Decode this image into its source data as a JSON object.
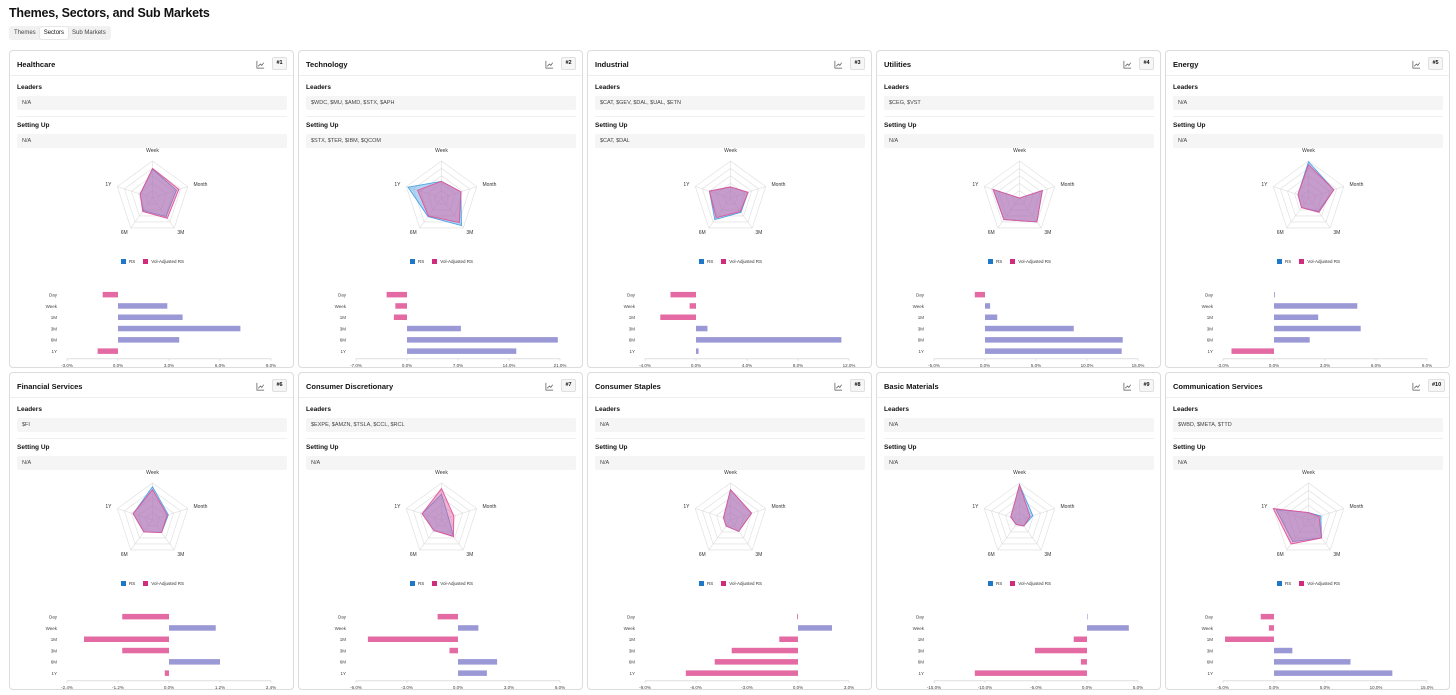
{
  "page": {
    "title": "Themes, Sectors, and Sub Markets"
  },
  "tabs": [
    {
      "label": "Themes",
      "active": false
    },
    {
      "label": "Sectors",
      "active": true
    },
    {
      "label": "Sub Markets",
      "active": false
    }
  ],
  "labels": {
    "leaders": "Leaders",
    "setting_up": "Setting Up"
  },
  "radar_axes": [
    "Week",
    "Month",
    "3M",
    "6M",
    "1Y"
  ],
  "bar_categories": [
    "Day",
    "Week",
    "1M",
    "3M",
    "6M",
    "1Y"
  ],
  "legend": {
    "rs": "RS",
    "vol_adjusted": "Vol-Adjusted RS"
  },
  "colors": {
    "rs": "#4fa3e6",
    "vol_adjusted": "#e0569a",
    "overlap": "#8a82c9",
    "bar_positive": "#9b98d6",
    "bar_negative": "#e36aa3",
    "rs_legend": "#1f77c8",
    "vol_legend": "#d12c7c"
  },
  "icons": {
    "chart_toggle": "line-chart-icon"
  },
  "sectors": [
    {
      "name": "Healthcare",
      "rank": "#1",
      "leaders": "N/A",
      "setting_up": "N/A",
      "radar": {
        "rs": [
          0.78,
          0.68,
          0.62,
          0.42,
          0.35
        ],
        "vol": [
          0.8,
          0.75,
          0.68,
          0.45,
          0.35
        ]
      },
      "bars": {
        "values": [
          -0.9,
          2.9,
          3.8,
          7.2,
          3.6,
          -1.2
        ],
        "ticks": [
          "-3.0%",
          "0.0%",
          "3.0%",
          "6.0%",
          "9.0%"
        ],
        "domain": [
          -3,
          9
        ]
      }
    },
    {
      "name": "Technology",
      "rank": "#2",
      "leaders": "$WDC, $MU, $AMD, $STX, $APH",
      "setting_up": "$STX, $TER, $IBM, $QCOM",
      "radar": {
        "rs": [
          0.45,
          0.55,
          0.92,
          0.62,
          0.95
        ],
        "vol": [
          0.45,
          0.55,
          0.82,
          0.6,
          0.68
        ]
      },
      "bars": {
        "values": [
          -2.8,
          -1.6,
          -1.8,
          7.4,
          20.7,
          15.0
        ],
        "ticks": [
          "-7.0%",
          "0.0%",
          "7.0%",
          "14.0%",
          "21.0%"
        ],
        "domain": [
          -7,
          21
        ]
      }
    },
    {
      "name": "Industrial",
      "rank": "#3",
      "leaders": "$CAT, $GEV, $DAL, $UAL, $ETN",
      "setting_up": "$CAT, $DAL",
      "radar": {
        "rs": [
          0.3,
          0.5,
          0.48,
          0.72,
          0.6
        ],
        "vol": [
          0.3,
          0.5,
          0.45,
          0.66,
          0.6
        ]
      },
      "bars": {
        "values": [
          -2.0,
          -0.5,
          -2.8,
          0.9,
          11.4,
          0.2
        ],
        "ticks": [
          "-4.0%",
          "0.0%",
          "4.0%",
          "8.0%",
          "12.0%"
        ],
        "domain": [
          -4,
          12
        ]
      }
    },
    {
      "name": "Utilities",
      "rank": "#4",
      "leaders": "$CEG, $VST",
      "setting_up": "N/A",
      "radar": {
        "rs": [
          0.0,
          0.65,
          0.8,
          0.72,
          0.75
        ],
        "vol": [
          0.0,
          0.65,
          0.8,
          0.72,
          0.75
        ]
      },
      "bars": {
        "values": [
          -1.0,
          0.5,
          1.2,
          8.7,
          13.5,
          13.4
        ],
        "ticks": [
          "-5.0%",
          "0.0%",
          "5.0%",
          "10.0%",
          "15.0%"
        ],
        "domain": [
          -5,
          15
        ]
      }
    },
    {
      "name": "Energy",
      "rank": "#5",
      "leaders": "N/A",
      "setting_up": "N/A",
      "radar": {
        "rs": [
          0.98,
          0.72,
          0.45,
          0.32,
          0.3
        ],
        "vol": [
          0.9,
          0.72,
          0.48,
          0.32,
          0.3
        ]
      },
      "bars": {
        "values": [
          0.05,
          4.9,
          2.6,
          5.1,
          2.1,
          -2.5
        ],
        "ticks": [
          "-3.0%",
          "0.0%",
          "3.0%",
          "6.0%",
          "9.0%"
        ],
        "domain": [
          -3,
          9
        ]
      }
    },
    {
      "name": "Financial Services",
      "rank": "#6",
      "leaders": "$FI",
      "setting_up": "N/A",
      "radar": {
        "rs": [
          0.9,
          0.45,
          0.42,
          0.4,
          0.55
        ],
        "vol": [
          0.82,
          0.42,
          0.42,
          0.4,
          0.55
        ]
      },
      "bars": {
        "values": [
          -1.1,
          1.1,
          -2.0,
          -1.1,
          1.2,
          -0.1
        ],
        "ticks": [
          "-2.4%",
          "-1.2%",
          "0.0%",
          "1.2%",
          "2.4%"
        ],
        "domain": [
          -2.4,
          2.4
        ]
      }
    },
    {
      "name": "Consumer Discretionary",
      "rank": "#7",
      "leaders": "$EXPE, $AMZN, $TSLA, $CCL, $RCL",
      "setting_up": "N/A",
      "radar": {
        "rs": [
          0.7,
          0.2,
          0.55,
          0.35,
          0.55
        ],
        "vol": [
          0.85,
          0.35,
          0.55,
          0.35,
          0.55
        ]
      },
      "bars": {
        "values": [
          -1.2,
          1.2,
          -5.3,
          -0.5,
          2.3,
          1.7
        ],
        "ticks": [
          "-6.0%",
          "-3.0%",
          "0.0%",
          "3.0%",
          "6.0%"
        ],
        "domain": [
          -6,
          6
        ]
      }
    },
    {
      "name": "Consumer Staples",
      "rank": "#8",
      "leaders": "N/A",
      "setting_up": "N/A",
      "radar": {
        "rs": [
          0.82,
          0.6,
          0.38,
          0.2,
          0.2
        ],
        "vol": [
          0.82,
          0.6,
          0.38,
          0.2,
          0.2
        ]
      },
      "bars": {
        "values": [
          -0.05,
          2.0,
          -1.1,
          -3.9,
          -4.9,
          -6.6
        ],
        "ticks": [
          "-9.0%",
          "-6.0%",
          "-3.0%",
          "0.0%",
          "3.0%"
        ],
        "domain": [
          -9,
          3
        ]
      }
    },
    {
      "name": "Basic Materials",
      "rank": "#9",
      "leaders": "N/A",
      "setting_up": "N/A",
      "radar": {
        "rs": [
          0.95,
          0.38,
          0.2,
          0.15,
          0.25
        ],
        "vol": [
          0.95,
          0.3,
          0.2,
          0.15,
          0.25
        ]
      },
      "bars": {
        "values": [
          0.05,
          4.1,
          -1.3,
          -5.1,
          -0.6,
          -11.0
        ],
        "ticks": [
          "-15.0%",
          "-10.0%",
          "-5.0%",
          "0.0%",
          "5.0%"
        ],
        "domain": [
          -15,
          5
        ]
      }
    },
    {
      "name": "Communication Services",
      "rank": "#10",
      "leaders": "$WBD, $META, $TTD",
      "setting_up": "N/A",
      "radar": {
        "rs": [
          0.2,
          0.35,
          0.6,
          0.72,
          0.92
        ],
        "vol": [
          0.2,
          0.3,
          0.6,
          0.8,
          1.0
        ]
      },
      "bars": {
        "values": [
          -1.3,
          -0.5,
          -4.8,
          1.8,
          7.5,
          11.6
        ],
        "ticks": [
          "-5.0%",
          "0.0%",
          "5.0%",
          "10.0%",
          "15.0%"
        ],
        "domain": [
          -5,
          15
        ]
      }
    }
  ]
}
